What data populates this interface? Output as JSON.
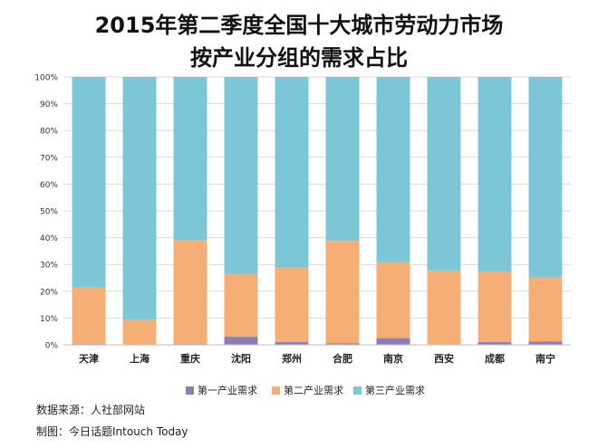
{
  "title_line1": "2015年第二季度全国十大城市劳动力市场",
  "title_line2": "按产业分组的需求占比",
  "source": "数据来源：人社部网站",
  "credit": "制图：今日话题Intouch Today",
  "colors": {
    "primary": "#8C7DB6",
    "secondary": "#F5AE76",
    "tertiary": "#7CC6D6",
    "grid": "#d9d9d9",
    "axis_text": "#333333"
  },
  "chart_data": {
    "type": "bar",
    "stacked": true,
    "normalized": true,
    "categories": [
      "天津",
      "上海",
      "重庆",
      "沈阳",
      "郑州",
      "合肥",
      "南京",
      "西安",
      "成都",
      "南宁"
    ],
    "series": [
      {
        "name": "第一产业需求",
        "values": [
          0.3,
          0.1,
          0.3,
          3.0,
          1.0,
          0.6,
          2.5,
          0.2,
          1.0,
          1.3
        ]
      },
      {
        "name": "第二产业需求",
        "values": [
          21.2,
          9.4,
          38.9,
          23.5,
          27.8,
          38.2,
          28.3,
          27.6,
          26.3,
          23.9
        ]
      },
      {
        "name": "第三产业需求",
        "values": [
          78.5,
          90.5,
          60.8,
          73.5,
          71.2,
          61.2,
          69.2,
          72.2,
          72.7,
          74.8
        ]
      }
    ],
    "ylim": [
      0,
      100
    ],
    "yticks": [
      "0%",
      "10%",
      "20%",
      "30%",
      "40%",
      "50%",
      "60%",
      "70%",
      "80%",
      "90%",
      "100%"
    ],
    "grid": true,
    "legend_position": "bottom"
  }
}
